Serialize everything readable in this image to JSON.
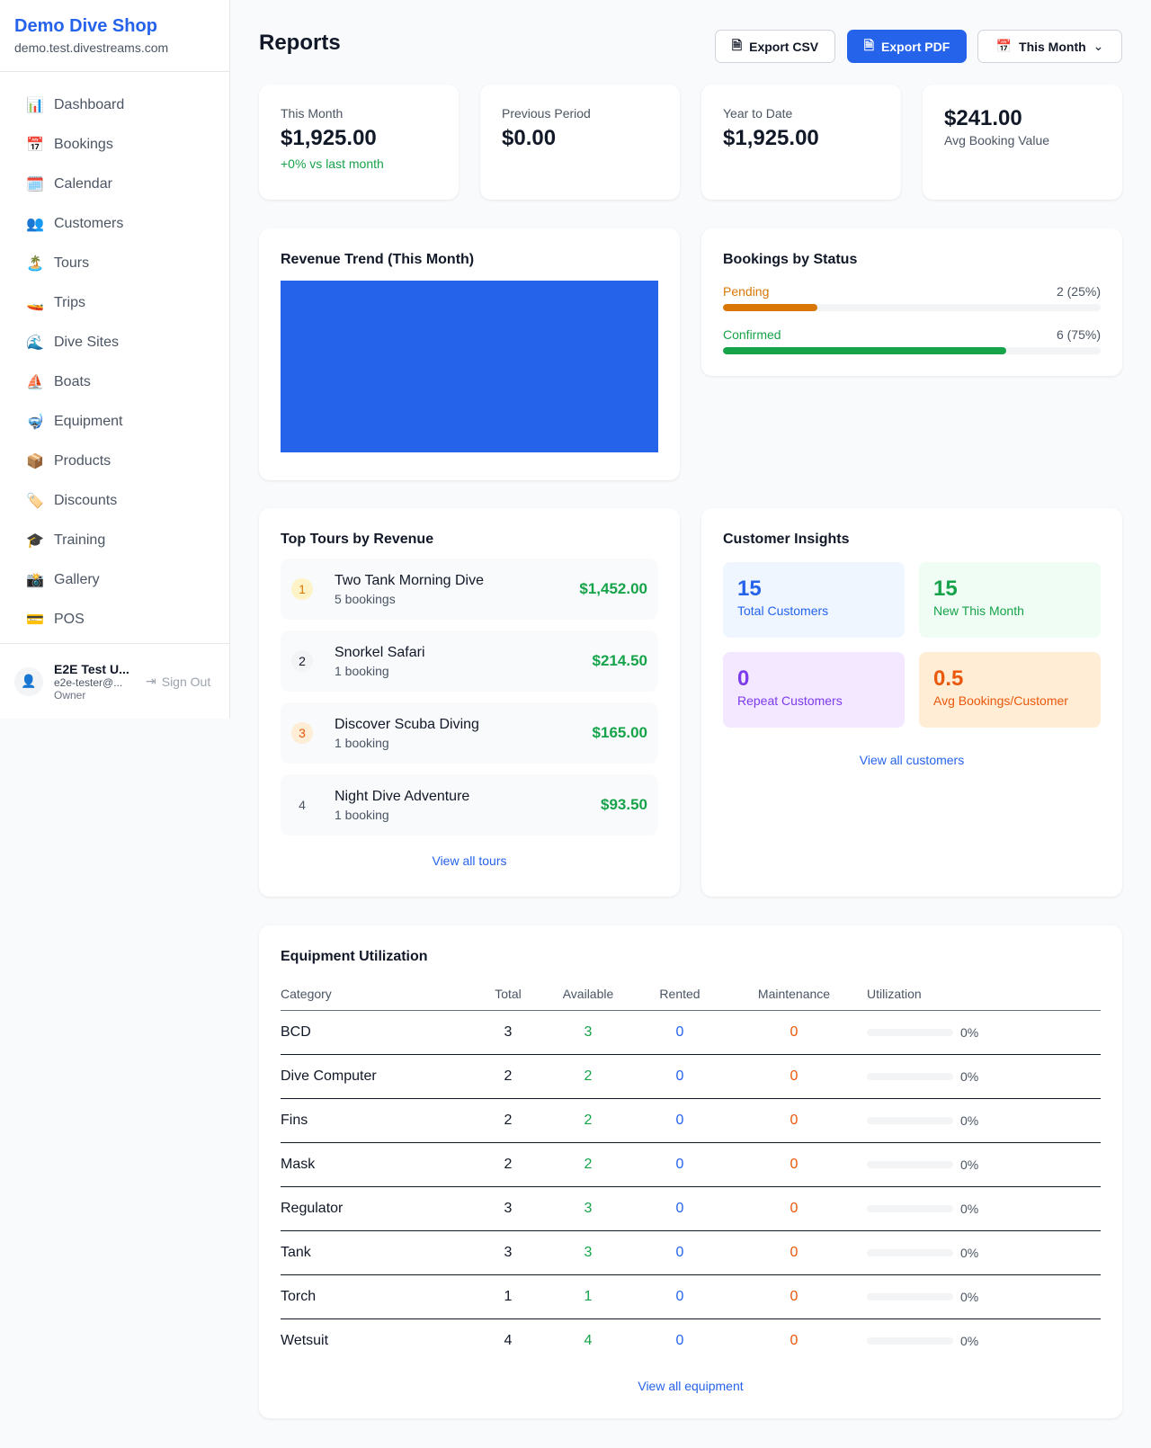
{
  "sidebar": {
    "brand": "Demo Dive Shop",
    "url": "demo.test.divestreams.com",
    "items": [
      {
        "icon": "📊",
        "label": "Dashboard"
      },
      {
        "icon": "📅",
        "label": "Bookings"
      },
      {
        "icon": "🗓️",
        "label": "Calendar"
      },
      {
        "icon": "👥",
        "label": "Customers"
      },
      {
        "icon": "🏝️",
        "label": "Tours"
      },
      {
        "icon": "🚤",
        "label": "Trips"
      },
      {
        "icon": "🌊",
        "label": "Dive Sites"
      },
      {
        "icon": "⛵",
        "label": "Boats"
      },
      {
        "icon": "🤿",
        "label": "Equipment"
      },
      {
        "icon": "📦",
        "label": "Products"
      },
      {
        "icon": "🏷️",
        "label": "Discounts"
      },
      {
        "icon": "🎓",
        "label": "Training"
      },
      {
        "icon": "📸",
        "label": "Gallery"
      },
      {
        "icon": "💳",
        "label": "POS"
      }
    ],
    "user": {
      "name": "E2E Test U...",
      "email": "e2e-tester@...",
      "role": "Owner",
      "sign_out": "Sign Out"
    }
  },
  "header": {
    "title": "Reports",
    "export_csv": "Export CSV",
    "export_pdf": "Export PDF",
    "period": "This Month"
  },
  "stats": [
    {
      "label": "This Month",
      "value": "$1,925.00",
      "sub": "+0% vs last month"
    },
    {
      "label": "Previous Period",
      "value": "$0.00"
    },
    {
      "label": "Year to Date",
      "value": "$1,925.00"
    },
    {
      "value": "$241.00",
      "label": "Avg Booking Value"
    }
  ],
  "revenue": {
    "title": "Revenue Trend (This Month)",
    "color": "#2563eb"
  },
  "bookings_status": {
    "title": "Bookings by Status",
    "items": [
      {
        "label": "Pending",
        "count": "2 (25%)",
        "percent": 25,
        "color": "#d97706"
      },
      {
        "label": "Confirmed",
        "count": "6 (75%)",
        "percent": 75,
        "color": "#16a34a"
      }
    ]
  },
  "top_tours": {
    "title": "Top Tours by Revenue",
    "link": "View all tours",
    "items": [
      {
        "rank": "1",
        "name": "Two Tank Morning Dive",
        "bookings": "5 bookings",
        "revenue": "$1,452.00"
      },
      {
        "rank": "2",
        "name": "Snorkel Safari",
        "bookings": "1 booking",
        "revenue": "$214.50"
      },
      {
        "rank": "3",
        "name": "Discover Scuba Diving",
        "bookings": "1 booking",
        "revenue": "$165.00"
      },
      {
        "rank": "4",
        "name": "Night Dive Adventure",
        "bookings": "1 booking",
        "revenue": "$93.50"
      }
    ]
  },
  "insights": {
    "title": "Customer Insights",
    "link": "View all customers",
    "items": [
      {
        "value": "15",
        "label": "Total Customers"
      },
      {
        "value": "15",
        "label": "New This Month"
      },
      {
        "value": "0",
        "label": "Repeat Customers"
      },
      {
        "value": "0.5",
        "label": "Avg Bookings/Customer"
      }
    ]
  },
  "equipment": {
    "title": "Equipment Utilization",
    "link": "View all equipment",
    "columns": [
      "Category",
      "Total",
      "Available",
      "Rented",
      "Maintenance",
      "Utilization"
    ],
    "rows": [
      [
        "BCD",
        "3",
        "3",
        "0",
        "0",
        "0%"
      ],
      [
        "Dive Computer",
        "2",
        "2",
        "0",
        "0",
        "0%"
      ],
      [
        "Fins",
        "2",
        "2",
        "0",
        "0",
        "0%"
      ],
      [
        "Mask",
        "2",
        "2",
        "0",
        "0",
        "0%"
      ],
      [
        "Regulator",
        "3",
        "3",
        "0",
        "0",
        "0%"
      ],
      [
        "Tank",
        "3",
        "3",
        "0",
        "0",
        "0%"
      ],
      [
        "Torch",
        "1",
        "1",
        "0",
        "0",
        "0%"
      ],
      [
        "Wetsuit",
        "4",
        "4",
        "0",
        "0",
        "0%"
      ]
    ]
  }
}
